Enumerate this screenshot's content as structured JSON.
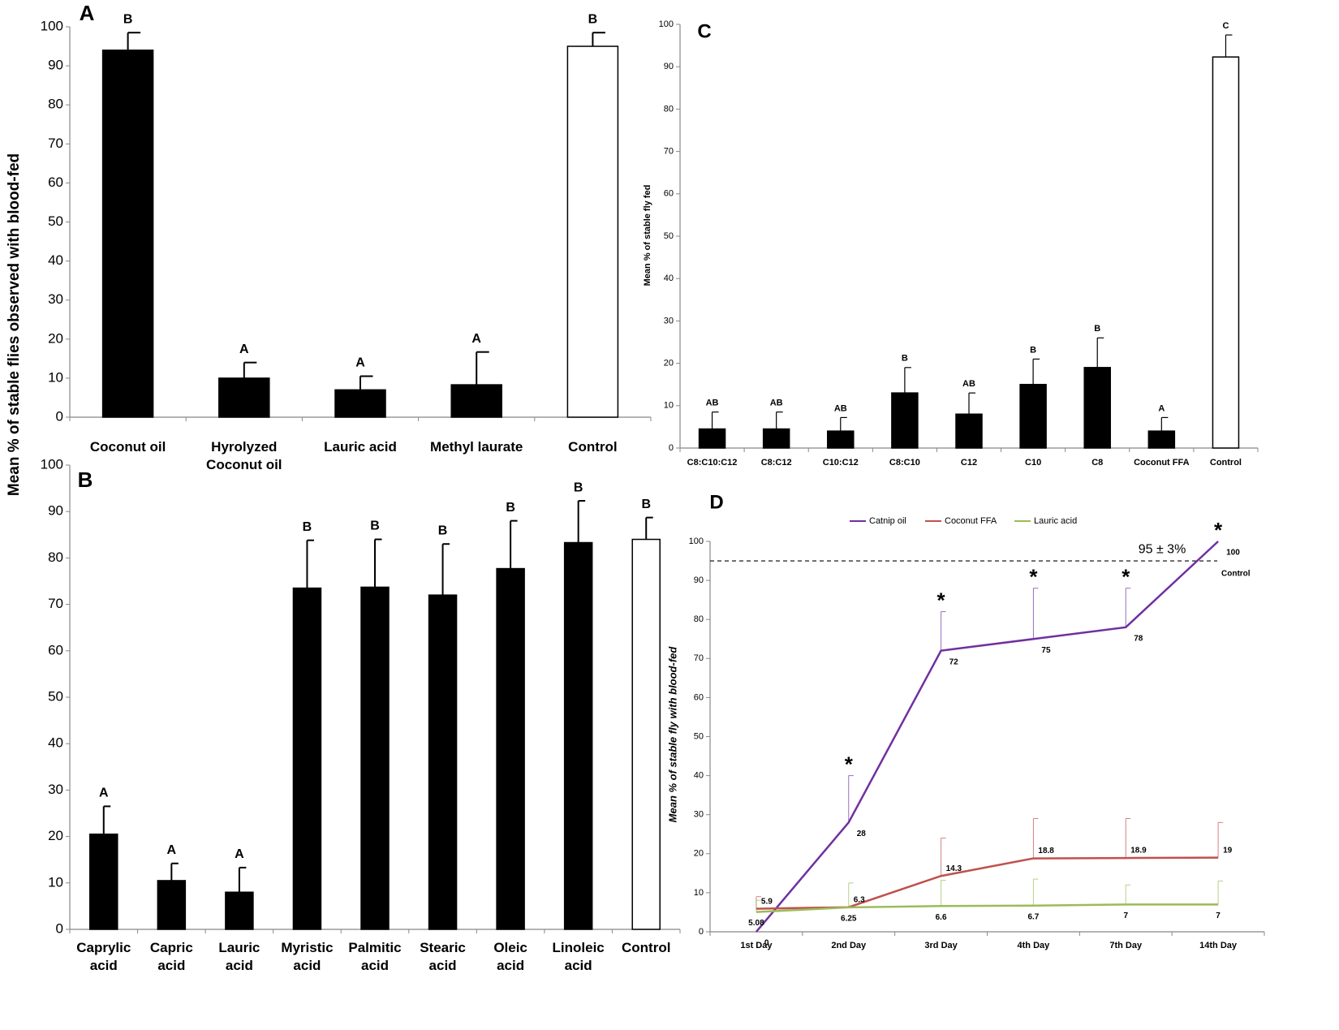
{
  "chart_data": [
    {
      "type": "bar",
      "panel": "A",
      "ylabel": "Mean % of stable flies observed with blood-fed",
      "categories": [
        "Coconut oil",
        "Hyrolyzed Coconut oil",
        "Lauric acid",
        "Methyl laurate",
        "Control"
      ],
      "values": [
        94,
        10,
        7,
        8.3,
        95
      ],
      "errors": [
        4.5,
        4,
        3.5,
        8.4,
        3.5
      ],
      "letters": [
        "B",
        "A",
        "A",
        "A",
        "B"
      ],
      "colors": [
        "#000000",
        "#000000",
        "#000000",
        "#000000",
        "#ffffff"
      ],
      "ylim": [
        0,
        100
      ],
      "yticks": [
        0,
        10,
        20,
        30,
        40,
        50,
        60,
        70,
        80,
        90,
        100
      ]
    },
    {
      "type": "bar",
      "panel": "B",
      "categories": [
        "Caprylic acid",
        "Capric acid",
        "Lauric acid",
        "Myristic acid",
        "Palmitic acid",
        "Stearic acid",
        "Oleic acid",
        "Linoleic acid",
        "Control"
      ],
      "values": [
        20.5,
        10.5,
        8,
        73.5,
        73.7,
        72,
        77.7,
        83.3,
        84
      ],
      "errors": [
        6,
        3.7,
        5.3,
        10.3,
        10.3,
        11,
        10.3,
        9,
        4.7
      ],
      "letters": [
        "A",
        "A",
        "A",
        "B",
        "B",
        "B",
        "B",
        "B",
        "B"
      ],
      "colors": [
        "#000000",
        "#000000",
        "#000000",
        "#000000",
        "#000000",
        "#000000",
        "#000000",
        "#000000",
        "#ffffff"
      ],
      "ylim": [
        0,
        100
      ],
      "yticks": [
        0,
        10,
        20,
        30,
        40,
        50,
        60,
        70,
        80,
        90,
        100
      ]
    },
    {
      "type": "bar",
      "panel": "C",
      "ylabel": "Mean % of stable fly fed",
      "categories": [
        "C8:C10:C12",
        "C8:C12",
        "C10:C12",
        "C8:C10",
        "C12",
        "C10",
        "C8",
        "Coconut FFA",
        "Control"
      ],
      "values": [
        4.5,
        4.5,
        4,
        13,
        8,
        15,
        19,
        4,
        92.3
      ],
      "errors": [
        4,
        4,
        3.2,
        6,
        5,
        6,
        7,
        3.2,
        5.2
      ],
      "letters": [
        "AB",
        "AB",
        "AB",
        "B",
        "AB",
        "B",
        "B",
        "A",
        "C"
      ],
      "colors": [
        "#000000",
        "#000000",
        "#000000",
        "#000000",
        "#000000",
        "#000000",
        "#000000",
        "#000000",
        "#ffffff"
      ],
      "ylim": [
        0,
        100
      ],
      "yticks": [
        0,
        10,
        20,
        30,
        40,
        50,
        60,
        70,
        80,
        90,
        100
      ]
    },
    {
      "type": "line",
      "panel": "D",
      "ylabel": "Mean % of stable fly with blood-fed",
      "categories": [
        "1st Day",
        "2nd Day",
        "3rd Day",
        "4th Day",
        "7th Day",
        "14th Day"
      ],
      "series": [
        {
          "name": "Catnip oil",
          "color": "#7030a0",
          "label_color": "#7030a0",
          "values": [
            0,
            28,
            72,
            75,
            78,
            100
          ],
          "errors": [
            null,
            12,
            10,
            13,
            10,
            null
          ]
        },
        {
          "name": "Coconut FFA",
          "color": "#c0504d",
          "label_color": "#e36c09",
          "values": [
            5.9,
            6.3,
            14.3,
            18.8,
            18.9,
            19
          ],
          "errors": [
            3.1,
            null,
            9.7,
            10.2,
            10.1,
            9
          ]
        },
        {
          "name": "Lauric acid",
          "color": "#9bbb59",
          "label_color": "#9bbb59",
          "values": [
            5.08,
            6.25,
            6.6,
            6.7,
            7,
            7
          ],
          "errors": [
            3,
            6.25,
            6.6,
            6.8,
            5,
            6
          ]
        }
      ],
      "reference": {
        "value": 95,
        "label": "95 ± 3%",
        "name": "Control"
      },
      "annotations": [
        {
          "text": "*",
          "x": "2nd Day"
        },
        {
          "text": "*",
          "x": "3rd Day"
        },
        {
          "text": "*",
          "x": "4th Day"
        },
        {
          "text": "*",
          "x": "7th Day"
        },
        {
          "text": "*",
          "x": "14th Day"
        }
      ],
      "ylim": [
        0,
        100
      ],
      "yticks": [
        0,
        10,
        20,
        30,
        40,
        50,
        60,
        70,
        80,
        90,
        100
      ]
    }
  ]
}
